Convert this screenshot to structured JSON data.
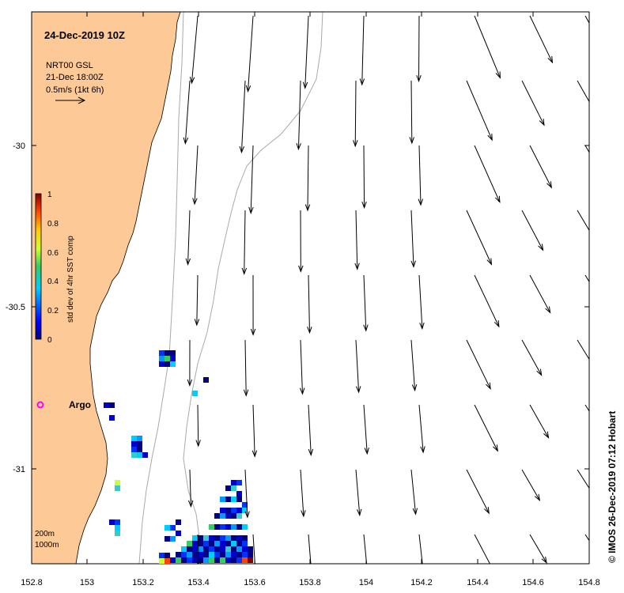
{
  "map": {
    "title": "24-Dec-2019 10Z",
    "info_line1": "NRT00 GSL",
    "info_line2": "21-Dec 18:00Z",
    "info_line3": "0.5m/s (1kt 6h)",
    "credit": "© IMOS 26-Dec-2019 07:12 Hobart",
    "argo_label": "Argo",
    "isobath_label_1": "200m",
    "isobath_label_2": "1000m",
    "colorbar_label": "std dev of 4hr SST comp",
    "colorbar_ticks": [
      "0",
      "0.2",
      "0.4",
      "0.6",
      "0.8",
      "1"
    ],
    "x_ticks": [
      "152.8",
      "153",
      "153.2",
      "153.4",
      "153.6",
      "153.8",
      "154",
      "154.2",
      "154.4",
      "154.6",
      "154.8"
    ],
    "y_ticks": [
      "-30",
      "-30.5",
      "-31"
    ],
    "colors": {
      "land": "#fcc997",
      "argo": "#ff00ff",
      "isobath": "#aaaaaa"
    }
  },
  "chart_data": {
    "type": "map",
    "lon_range": [
      152.8,
      154.8
    ],
    "lat_range": [
      -31.29,
      -29.59
    ],
    "argo_float": {
      "lon": 152.83,
      "lat": -30.8
    },
    "scale_vector_ms": 0.5
  }
}
